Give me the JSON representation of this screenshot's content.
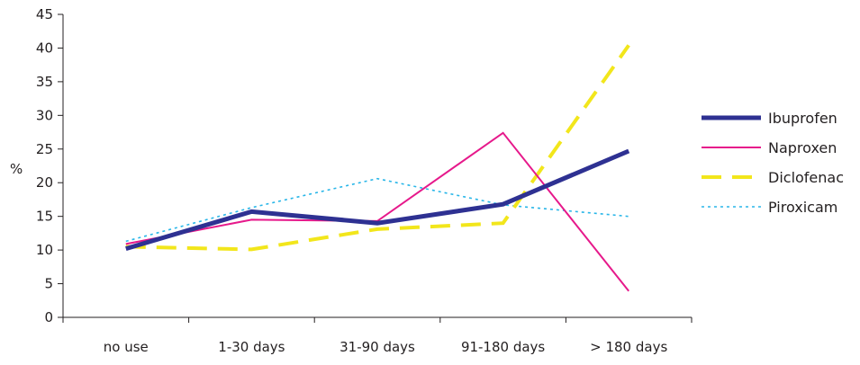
{
  "chart_data": {
    "type": "line",
    "ylabel": "%",
    "ylim": [
      0,
      45
    ],
    "yticks": [
      0,
      5,
      10,
      15,
      20,
      25,
      30,
      35,
      40,
      45
    ],
    "categories": [
      "no use",
      "1-30 days",
      "31-90 days",
      "91-180 days",
      "> 180 days"
    ],
    "legend_position": "right",
    "grid": false,
    "series": [
      {
        "name": "Ibuprofen",
        "values": [
          10.2,
          15.7,
          14.0,
          16.8,
          24.7
        ],
        "color": "#2e3192",
        "style": "solid-thick"
      },
      {
        "name": "Naproxen",
        "values": [
          10.9,
          14.5,
          14.3,
          27.4,
          3.9
        ],
        "color": "#e6198b",
        "style": "solid-thin"
      },
      {
        "name": "Diclofenac",
        "values": [
          10.5,
          10.1,
          13.1,
          14.0,
          40.4
        ],
        "color": "#f2e61b",
        "style": "dashed"
      },
      {
        "name": "Piroxicam",
        "values": [
          11.3,
          16.3,
          20.6,
          16.7,
          15.0
        ],
        "color": "#29b6e8",
        "style": "dotted"
      }
    ]
  }
}
